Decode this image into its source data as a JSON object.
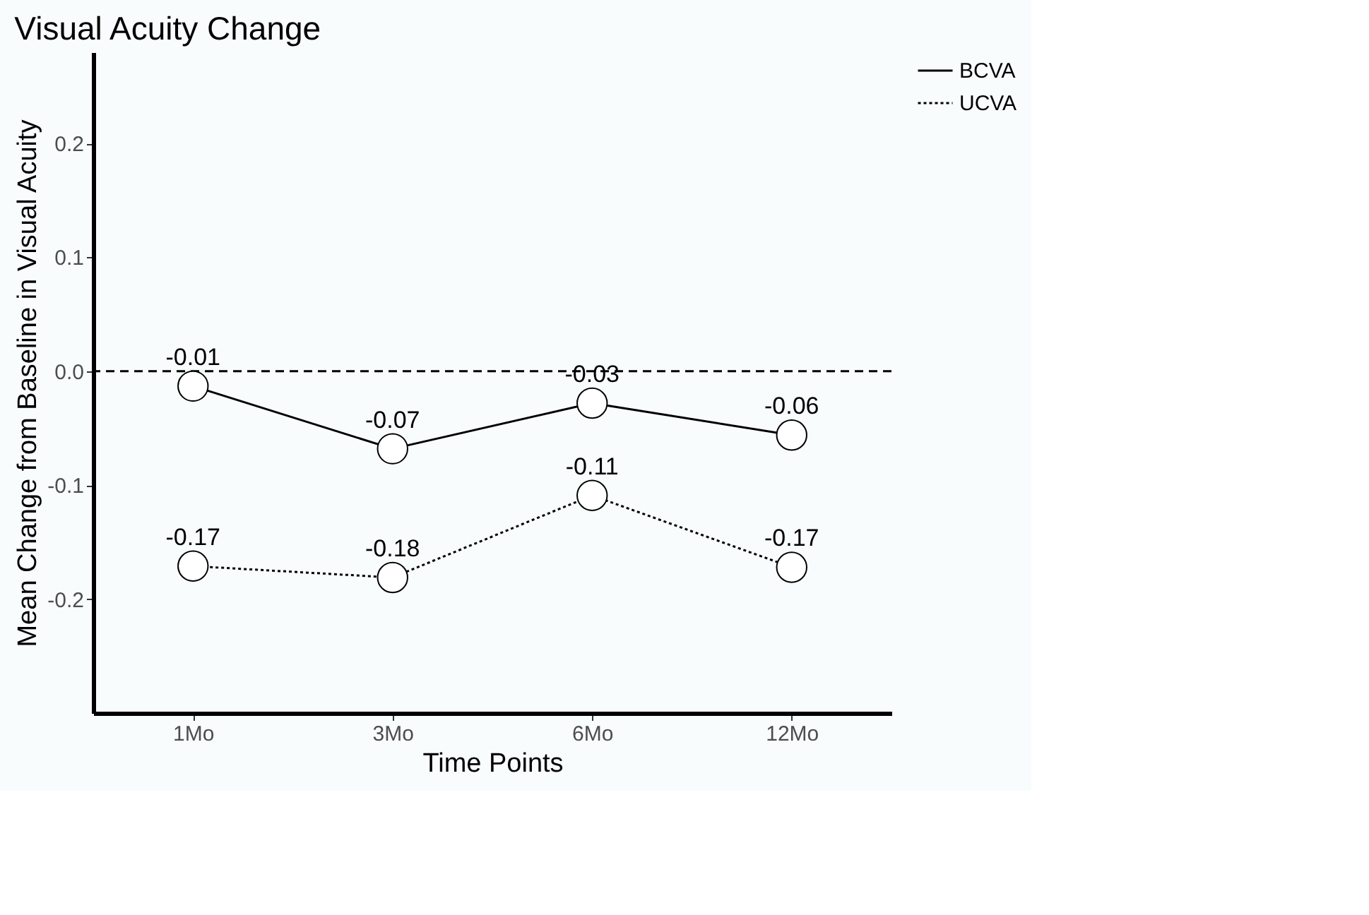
{
  "chart_data": {
    "type": "line",
    "title": "Visual Acuity Change",
    "xlabel": "Time Points",
    "ylabel": "Mean Change from Baseline in Visual Acuity",
    "categories": [
      "1Mo",
      "3Mo",
      "6Mo",
      "12Mo"
    ],
    "series": [
      {
        "name": "BCVA",
        "color": "#000000",
        "line_style": "solid",
        "values": [
          -0.013,
          -0.068,
          -0.028,
          -0.056
        ],
        "value_labels": [
          "-0.01",
          "-0.07",
          "-0.03",
          "-0.06"
        ]
      },
      {
        "name": "UCVA",
        "color": "#000000",
        "line_style": "dotted",
        "values": [
          -0.171,
          -0.181,
          -0.109,
          -0.172
        ],
        "value_labels": [
          "-0.17",
          "-0.18",
          "-0.11",
          "-0.17"
        ]
      }
    ],
    "ylim": [
      -0.3,
      0.28
    ],
    "yticks": [
      -0.2,
      -0.1,
      {
        "value": 0,
        "label": "0.0"
      },
      0.1,
      0.2
    ],
    "ref_lines": [
      {
        "axis": "y",
        "value": 0.0,
        "label": null,
        "line_style": "dashed"
      }
    ],
    "marker": "circle",
    "grid": false,
    "legend": "right"
  }
}
